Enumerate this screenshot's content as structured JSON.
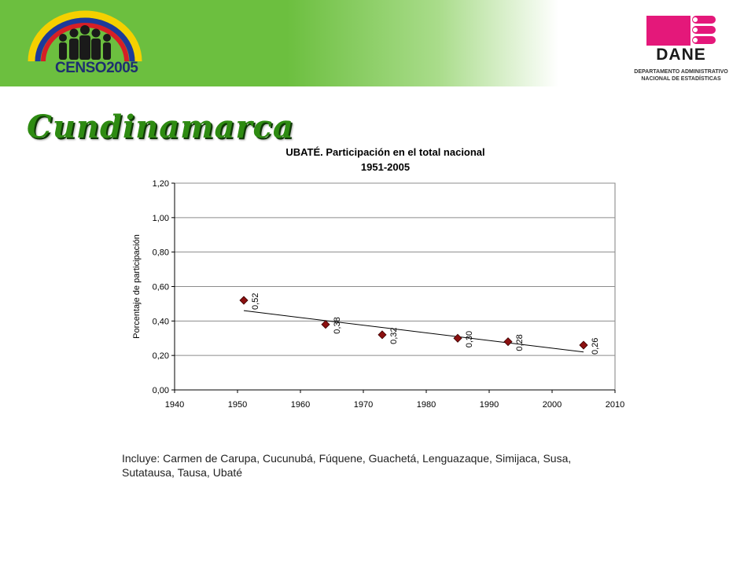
{
  "header": {
    "censo_logo_text": "CENSO2005",
    "dane_logo_text": "DANE",
    "dane_subtitle_line1": "DEPARTAMENTO ADMINISTRATIVO",
    "dane_subtitle_line2": "NACIONAL DE ESTADÍSTICAS",
    "colors": {
      "banner_green": "#6cbf3f",
      "dane_pink": "#e4187a",
      "title_green": "#2e8b12"
    }
  },
  "page_title": "Cundinamarca",
  "chart_data": {
    "type": "scatter",
    "title": "UBATÉ. Participación en el total nacional",
    "subtitle": "1951-2005",
    "xlabel": "",
    "ylabel": "Porcentaje de participación",
    "xlim": [
      1940,
      2010
    ],
    "ylim": [
      0,
      1.2
    ],
    "x_ticks": [
      "1940",
      "1950",
      "1960",
      "1970",
      "1980",
      "1990",
      "2000",
      "2010"
    ],
    "y_ticks": [
      "0,00",
      "0,20",
      "0,40",
      "0,60",
      "0,80",
      "1,00",
      "1,20"
    ],
    "grid": true,
    "points": [
      {
        "x": 1951,
        "y": 0.52,
        "label": "0,52"
      },
      {
        "x": 1964,
        "y": 0.38,
        "label": "0,38"
      },
      {
        "x": 1973,
        "y": 0.32,
        "label": "0,32"
      },
      {
        "x": 1985,
        "y": 0.3,
        "label": "0,30"
      },
      {
        "x": 1993,
        "y": 0.28,
        "label": "0,28"
      },
      {
        "x": 2005,
        "y": 0.26,
        "label": "0,26"
      }
    ],
    "trendline": {
      "x": [
        1951,
        2005
      ],
      "y": [
        0.46,
        0.22
      ]
    },
    "marker_color": "#8b1010"
  },
  "footnote": "Incluye: Carmen de Carupa, Cucunubá, Fúquene, Guachetá, Lenguazaque, Simijaca, Susa, Sutatausa, Tausa, Ubaté"
}
